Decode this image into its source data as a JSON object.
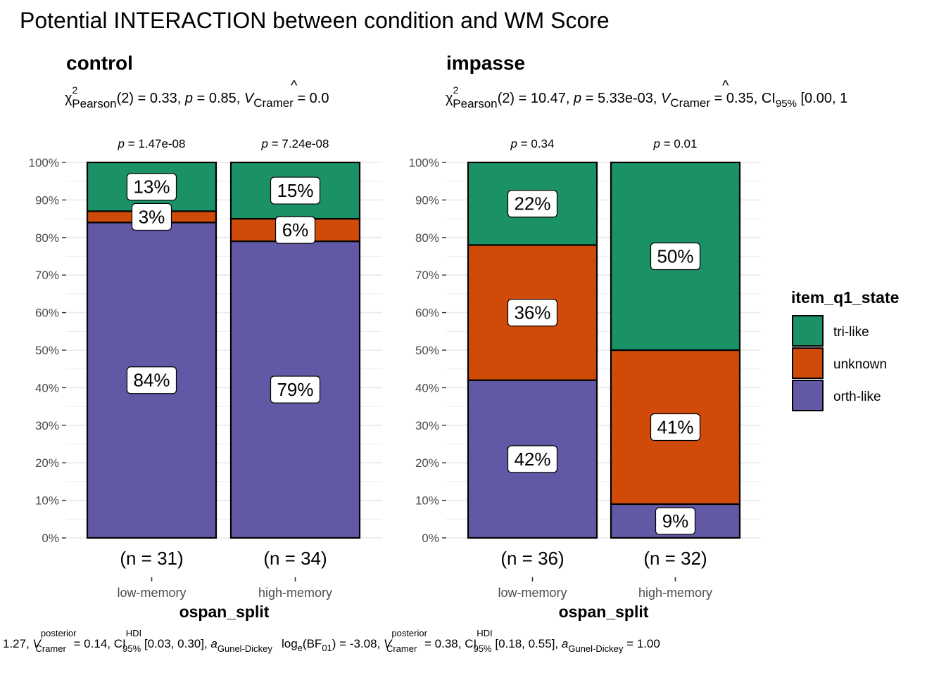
{
  "title": "Potential INTERACTION between condition and WM Score",
  "colors": {
    "tri-like": "#1b9166",
    "unknown": "#d04a0a",
    "orth-like": "#6159a5"
  },
  "chart_data": {
    "type": "bar",
    "stacked": true,
    "xlabel": "ospan_split",
    "ylim": [
      0,
      100
    ],
    "yticks": [
      "0%",
      "10%",
      "20%",
      "30%",
      "40%",
      "50%",
      "60%",
      "70%",
      "80%",
      "90%",
      "100%"
    ],
    "legend": {
      "title": "item_q1_state",
      "position": "right",
      "entries": [
        "tri-like",
        "unknown",
        "orth-like"
      ]
    },
    "panels": [
      {
        "title": "control",
        "subtitle": {
          "stat": "(2) = 0.33, ",
          "p": " = 0.85, ",
          "v": " = 0.0"
        },
        "categories": [
          "low-memory",
          "high-memory"
        ],
        "n_labels": [
          "(n = 31)",
          "(n = 34)"
        ],
        "p_labels": [
          " = 1.47e-08",
          " = 7.24e-08"
        ],
        "series": [
          {
            "name": "orth-like",
            "values": [
              84,
              79
            ],
            "labels": [
              "84%",
              "79%"
            ]
          },
          {
            "name": "unknown",
            "values": [
              3,
              6
            ],
            "labels": [
              "3%",
              "6%"
            ]
          },
          {
            "name": "tri-like",
            "values": [
              13,
              15
            ],
            "labels": [
              "13%",
              "15%"
            ]
          }
        ]
      },
      {
        "title": "impasse",
        "subtitle": {
          "stat": "(2) = 10.47, ",
          "p": " = 5.33e-03, ",
          "v": " = 0.35, CI",
          "ci": " [0.00, 1"
        },
        "categories": [
          "low-memory",
          "high-memory"
        ],
        "n_labels": [
          "(n = 36)",
          "(n = 32)"
        ],
        "p_labels": [
          " = 0.34",
          " = 0.01"
        ],
        "series": [
          {
            "name": "orth-like",
            "values": [
              42,
              9
            ],
            "labels": [
              "42%",
              "9%"
            ]
          },
          {
            "name": "unknown",
            "values": [
              36,
              41
            ],
            "labels": [
              "36%",
              "41%"
            ]
          },
          {
            "name": "tri-like",
            "values": [
              22,
              50
            ],
            "labels": [
              "22%",
              "50%"
            ]
          }
        ]
      }
    ],
    "caption_left": "1.27, ",
    "caption_left_2": " = 0.14, CI",
    "caption_left_3": " [0.03, 0.30], ",
    "caption_right": "log",
    "caption_right_2": "(BF",
    "caption_right_3": ") = -3.08, ",
    "caption_right_4": " = 0.38, CI",
    "caption_right_5": " [0.18, 0.55], ",
    "caption_right_6": " = 1.00"
  },
  "text": {
    "chi": "χ",
    "sup2": "2",
    "pearson": "Pearson",
    "p_italic": "p",
    "v_italic": "V",
    "hat": "^",
    "cramer": "Cramer",
    "ci95": "95%",
    "posterior": "posterior",
    "hdi": "HDI",
    "a_italic": "a",
    "gunel": "Gunel-Dickey",
    "e": "e",
    "sub01": "01"
  }
}
